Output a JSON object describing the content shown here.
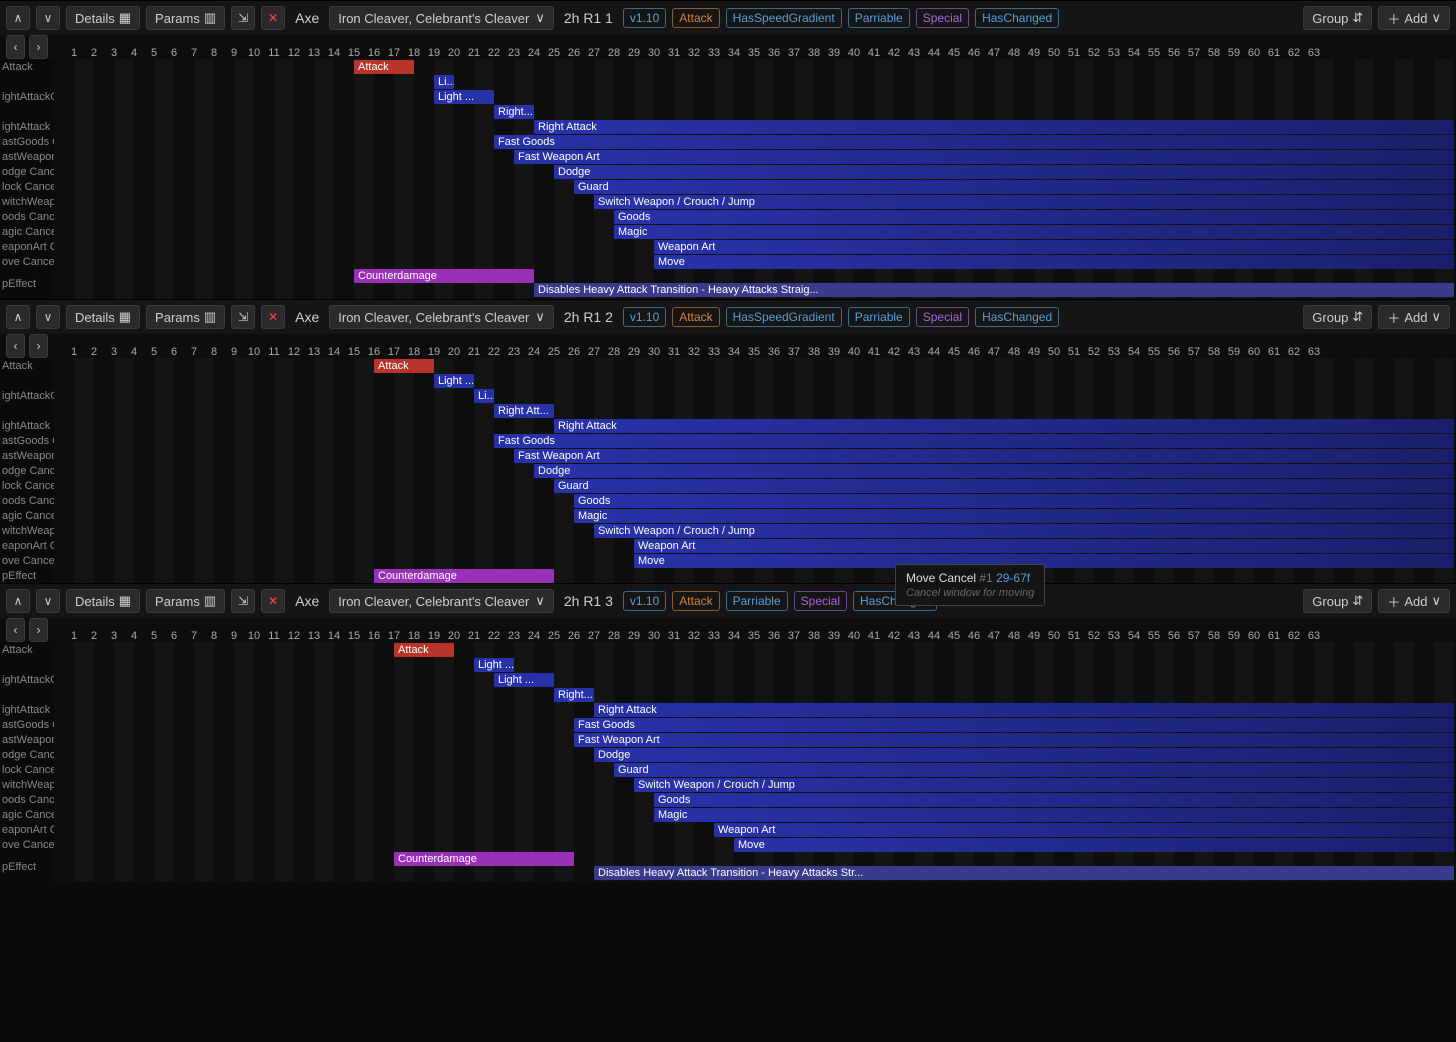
{
  "frameWidth": 20,
  "rulerMax": 63,
  "colors": {
    "attack": "#b8342a",
    "cancelBlue": "#2832a8",
    "cancelBlueGrad": "#1a1f6a",
    "counter": "#9830b8",
    "disable": "#3a3a8a",
    "gridDark": "#0d0d0d",
    "gridLight": "#141414"
  },
  "toolbar": {
    "details": "Details",
    "params": "Params",
    "weaponType": "Axe",
    "weaponName": "Iron Cleaver, Celebrant's Cleaver",
    "group": "Group",
    "add": "Add"
  },
  "tags": {
    "version": "v1.10",
    "attack": "Attack",
    "speed": "HasSpeedGradient",
    "parriable": "Parriable",
    "special": "Special",
    "changed": "HasChanged"
  },
  "tooltip": {
    "title": "Move Cancel",
    "num": "#1",
    "range": "29-67f",
    "desc": "Cancel window for moving"
  },
  "panels": [
    {
      "attackLabel": "2h R1 1",
      "tags": [
        "version",
        "attack",
        "speed",
        "parriable",
        "special",
        "changed"
      ],
      "rows": [
        {
          "label": "Attack",
          "h": "short",
          "bars": [
            {
              "s": 15,
              "e": 18,
              "text": "Attack",
              "c": "attack"
            }
          ]
        },
        {
          "label": "",
          "h": "short",
          "bars": [
            {
              "s": 19,
              "e": 20,
              "text": "Li...",
              "c": "blue"
            }
          ]
        },
        {
          "label": "ightAttackOnly Cancel",
          "h": "short",
          "bars": [
            {
              "s": 19,
              "e": 22,
              "text": "Light ...",
              "c": "blue"
            }
          ]
        },
        {
          "label": "",
          "h": "short",
          "bars": [
            {
              "s": 22,
              "e": 24,
              "text": "Right...",
              "c": "blue"
            }
          ]
        },
        {
          "label": "ightAttack Cancel",
          "h": "short",
          "bars": [
            {
              "s": 24,
              "e": 99,
              "text": "Right Attack",
              "c": "bluegrad"
            }
          ]
        },
        {
          "label": "astGoods Cancel",
          "h": "short",
          "bars": [
            {
              "s": 22,
              "e": 99,
              "text": "Fast Goods",
              "c": "bluegrad"
            }
          ]
        },
        {
          "label": "astWeaponArt Cancel",
          "h": "short",
          "bars": [
            {
              "s": 23,
              "e": 99,
              "text": "Fast Weapon Art",
              "c": "bluegrad"
            }
          ]
        },
        {
          "label": "odge Cancel",
          "h": "short",
          "bars": [
            {
              "s": 25,
              "e": 99,
              "text": "Dodge",
              "c": "bluegrad"
            }
          ]
        },
        {
          "label": "lock Cancel",
          "h": "short",
          "bars": [
            {
              "s": 26,
              "e": 99,
              "text": "Guard",
              "c": "bluegrad"
            }
          ]
        },
        {
          "label": "witchWeapon Cancel",
          "h": "short",
          "bars": [
            {
              "s": 27,
              "e": 99,
              "text": "Switch Weapon / Crouch / Jump",
              "c": "bluegrad"
            }
          ]
        },
        {
          "label": "oods Cancel",
          "h": "short",
          "bars": [
            {
              "s": 28,
              "e": 99,
              "text": "Goods",
              "c": "bluegrad"
            }
          ]
        },
        {
          "label": "agic Cancel",
          "h": "short",
          "bars": [
            {
              "s": 28,
              "e": 99,
              "text": "Magic",
              "c": "bluegrad"
            }
          ]
        },
        {
          "label": "eaponArt Cancel",
          "h": "short",
          "bars": [
            {
              "s": 30,
              "e": 99,
              "text": "Weapon Art",
              "c": "bluegrad"
            }
          ]
        },
        {
          "label": "ove Cancel",
          "h": "short",
          "bars": [
            {
              "s": 30,
              "e": 99,
              "text": "Move",
              "c": "bluegrad"
            }
          ]
        },
        {
          "label": "pEffect",
          "h": "tall",
          "bars": [
            {
              "s": 15,
              "e": 24,
              "text": "Counterdamage",
              "c": "counter",
              "y": 0
            },
            {
              "s": 24,
              "e": 99,
              "text": "Disables Heavy Attack Transition - Heavy Attacks Straig...",
              "c": "disable",
              "y": 14
            }
          ]
        }
      ]
    },
    {
      "attackLabel": "2h R1 2",
      "tags": [
        "version",
        "attack",
        "speed",
        "parriable",
        "special",
        "changed"
      ],
      "rows": [
        {
          "label": "Attack",
          "h": "short",
          "bars": [
            {
              "s": 16,
              "e": 19,
              "text": "Attack",
              "c": "attack"
            }
          ]
        },
        {
          "label": "",
          "h": "short",
          "bars": [
            {
              "s": 19,
              "e": 21,
              "text": "Light ...",
              "c": "blue"
            }
          ]
        },
        {
          "label": "ightAttackOnly Cancel",
          "h": "short",
          "bars": [
            {
              "s": 21,
              "e": 22,
              "text": "Li...",
              "c": "blue"
            }
          ]
        },
        {
          "label": "",
          "h": "short",
          "bars": [
            {
              "s": 22,
              "e": 25,
              "text": "Right Att...",
              "c": "blue"
            }
          ]
        },
        {
          "label": "ightAttack Cancel",
          "h": "short",
          "bars": [
            {
              "s": 25,
              "e": 99,
              "text": "Right Attack",
              "c": "bluegrad"
            }
          ]
        },
        {
          "label": "astGoods Cancel",
          "h": "short",
          "bars": [
            {
              "s": 22,
              "e": 99,
              "text": "Fast Goods",
              "c": "bluegrad"
            }
          ]
        },
        {
          "label": "astWeaponArt Cancel",
          "h": "short",
          "bars": [
            {
              "s": 23,
              "e": 99,
              "text": "Fast Weapon Art",
              "c": "bluegrad"
            }
          ]
        },
        {
          "label": "odge Cancel",
          "h": "short",
          "bars": [
            {
              "s": 24,
              "e": 99,
              "text": "Dodge",
              "c": "bluegrad"
            }
          ]
        },
        {
          "label": "lock Cancel",
          "h": "short",
          "bars": [
            {
              "s": 25,
              "e": 99,
              "text": "Guard",
              "c": "bluegrad"
            }
          ]
        },
        {
          "label": "oods Cancel",
          "h": "short",
          "bars": [
            {
              "s": 26,
              "e": 99,
              "text": "Goods",
              "c": "bluegrad"
            }
          ]
        },
        {
          "label": "agic Cancel",
          "h": "short",
          "bars": [
            {
              "s": 26,
              "e": 99,
              "text": "Magic",
              "c": "bluegrad"
            }
          ]
        },
        {
          "label": "witchWeapon Cancel",
          "h": "short",
          "bars": [
            {
              "s": 27,
              "e": 99,
              "text": "Switch Weapon / Crouch / Jump",
              "c": "bluegrad"
            }
          ]
        },
        {
          "label": "eaponArt Cancel",
          "h": "short",
          "bars": [
            {
              "s": 29,
              "e": 99,
              "text": "Weapon Art",
              "c": "bluegrad"
            }
          ]
        },
        {
          "label": "ove Cancel",
          "h": "short",
          "bars": [
            {
              "s": 29,
              "e": 99,
              "text": "Move",
              "c": "bluegrad"
            }
          ]
        },
        {
          "label": "pEffect",
          "h": "short",
          "bars": [
            {
              "s": 16,
              "e": 25,
              "text": "Counterdamage",
              "c": "counter"
            }
          ]
        }
      ]
    },
    {
      "attackLabel": "2h R1 3",
      "tags": [
        "version",
        "attack",
        "parriable",
        "special",
        "changed"
      ],
      "tooltip": true,
      "rows": [
        {
          "label": "Attack",
          "h": "short",
          "bars": [
            {
              "s": 17,
              "e": 20,
              "text": "Attack",
              "c": "attack"
            }
          ]
        },
        {
          "label": "",
          "h": "short",
          "bars": [
            {
              "s": 21,
              "e": 23,
              "text": "Light ...",
              "c": "blue"
            }
          ]
        },
        {
          "label": "ightAttackOnly Cancel",
          "h": "short",
          "bars": [
            {
              "s": 22,
              "e": 25,
              "text": "Light ...",
              "c": "blue"
            }
          ]
        },
        {
          "label": "",
          "h": "short",
          "bars": [
            {
              "s": 25,
              "e": 27,
              "text": "Right...",
              "c": "blue"
            }
          ]
        },
        {
          "label": "ightAttack Cancel",
          "h": "short",
          "bars": [
            {
              "s": 27,
              "e": 99,
              "text": "Right Attack",
              "c": "bluegrad"
            }
          ]
        },
        {
          "label": "astGoods Cancel",
          "h": "short",
          "bars": [
            {
              "s": 26,
              "e": 99,
              "text": "Fast Goods",
              "c": "bluegrad"
            }
          ]
        },
        {
          "label": "astWeaponArt Cancel",
          "h": "short",
          "bars": [
            {
              "s": 26,
              "e": 99,
              "text": "Fast Weapon Art",
              "c": "bluegrad"
            }
          ]
        },
        {
          "label": "odge Cancel",
          "h": "short",
          "bars": [
            {
              "s": 27,
              "e": 99,
              "text": "Dodge",
              "c": "bluegrad"
            }
          ]
        },
        {
          "label": "lock Cancel",
          "h": "short",
          "bars": [
            {
              "s": 28,
              "e": 99,
              "text": "Guard",
              "c": "bluegrad"
            }
          ]
        },
        {
          "label": "witchWeapon Cancel",
          "h": "short",
          "bars": [
            {
              "s": 29,
              "e": 99,
              "text": "Switch Weapon / Crouch / Jump",
              "c": "bluegrad"
            }
          ]
        },
        {
          "label": "oods Cancel",
          "h": "short",
          "bars": [
            {
              "s": 30,
              "e": 99,
              "text": "Goods",
              "c": "bluegrad"
            }
          ]
        },
        {
          "label": "agic Cancel",
          "h": "short",
          "bars": [
            {
              "s": 30,
              "e": 99,
              "text": "Magic",
              "c": "bluegrad"
            }
          ]
        },
        {
          "label": "eaponArt Cancel",
          "h": "short",
          "bars": [
            {
              "s": 33,
              "e": 99,
              "text": "Weapon Art",
              "c": "bluegrad"
            }
          ]
        },
        {
          "label": "ove Cancel",
          "h": "short",
          "bars": [
            {
              "s": 34,
              "e": 99,
              "text": "Move",
              "c": "bluegrad"
            }
          ]
        },
        {
          "label": "pEffect",
          "h": "tall",
          "bars": [
            {
              "s": 17,
              "e": 26,
              "text": "Counterdamage",
              "c": "counter",
              "y": 0
            },
            {
              "s": 27,
              "e": 99,
              "text": "Disables Heavy Attack Transition - Heavy Attacks Str...",
              "c": "disable",
              "y": 14
            }
          ]
        }
      ]
    }
  ]
}
